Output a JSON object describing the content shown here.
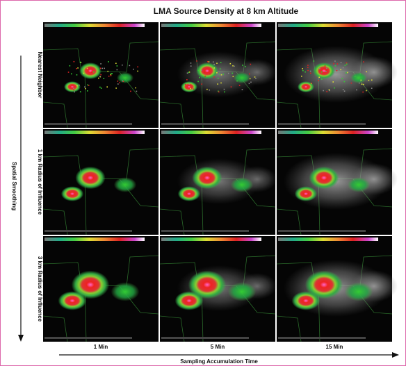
{
  "title": "LMA Source Density at 8 km Altitude",
  "row_axis_label": "Spatial Smoothing",
  "column_axis_label": "Sampling Accumulation Time",
  "rows": [
    "Nearest Neighbor",
    "1 km Radius of Influence",
    "3 km Radius of Influence"
  ],
  "columns": [
    "1 Min",
    "5 Min",
    "15 Min"
  ]
}
